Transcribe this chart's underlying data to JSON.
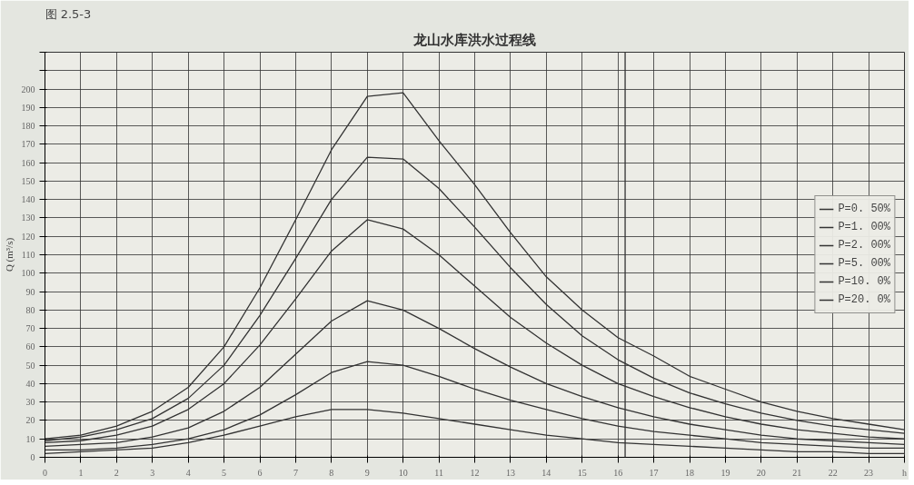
{
  "chart_data": {
    "type": "line",
    "title": "龙山水库洪水过程线",
    "annotations": [
      "图 2.5-3"
    ],
    "ylabel": "Q (m³/s)",
    "x": [
      0,
      1,
      2,
      3,
      4,
      5,
      6,
      7,
      8,
      9,
      10,
      11,
      12,
      13,
      14,
      15,
      16,
      17,
      18,
      19,
      20,
      21,
      22,
      23,
      24
    ],
    "series": [
      {
        "name": "P=0. 50%",
        "color": "#333333",
        "values": [
          10,
          12,
          17,
          25,
          38,
          60,
          92,
          129,
          167,
          196,
          198,
          172,
          148,
          122,
          98,
          80,
          65,
          55,
          44,
          37,
          30,
          25,
          21,
          18,
          15
        ]
      },
      {
        "name": "P=1. 00%",
        "color": "#333333",
        "values": [
          9,
          11,
          15,
          21,
          32,
          50,
          77,
          108,
          140,
          163,
          162,
          146,
          125,
          103,
          83,
          66,
          53,
          43,
          35,
          29,
          24,
          20,
          17,
          15,
          13
        ]
      },
      {
        "name": "P=2. 00%",
        "color": "#333333",
        "values": [
          8,
          9,
          12,
          17,
          26,
          40,
          61,
          86,
          112,
          129,
          124,
          110,
          93,
          76,
          62,
          50,
          40,
          33,
          27,
          22,
          18,
          15,
          13,
          11,
          10
        ]
      },
      {
        "name": "P=5. 00%",
        "color": "#333333",
        "values": [
          6,
          7,
          8,
          11,
          16,
          25,
          38,
          56,
          74,
          85,
          80,
          70,
          59,
          49,
          40,
          33,
          27,
          22,
          18,
          15,
          12,
          10,
          9,
          8,
          7
        ]
      },
      {
        "name": "P=10. 0%",
        "color": "#333333",
        "values": [
          4,
          4,
          5,
          7,
          10,
          15,
          23,
          34,
          46,
          52,
          50,
          44,
          37,
          31,
          26,
          21,
          17,
          14,
          12,
          10,
          8,
          7,
          6,
          5,
          5
        ]
      },
      {
        "name": "P=20. 0%",
        "color": "#333333",
        "values": [
          2,
          3,
          4,
          5,
          8,
          12,
          17,
          22,
          26,
          26,
          24,
          21,
          18,
          15,
          12,
          10,
          8,
          7,
          6,
          5,
          4,
          3,
          3,
          2,
          2
        ]
      }
    ],
    "xlim": [
      0,
      24
    ],
    "xticks": [
      0,
      1,
      2,
      3,
      4,
      5,
      6,
      7,
      8,
      9,
      10,
      11,
      12,
      13,
      14,
      15,
      16,
      17,
      18,
      19,
      20,
      21,
      22,
      23,
      {
        "value": 24,
        "label": "h"
      }
    ],
    "ylim": [
      0,
      220
    ],
    "yticks": [
      0,
      10,
      20,
      30,
      40,
      50,
      60,
      70,
      80,
      90,
      100,
      110,
      120,
      130,
      140,
      150,
      160,
      170,
      180,
      190,
      200,
      {
        "value": 210,
        "label": null
      },
      {
        "value": 220,
        "label": null
      }
    ],
    "ref_lines": [
      {
        "axis": "x",
        "value": 16.2,
        "label": null
      }
    ],
    "grid": true,
    "legend": "right",
    "marker": "none",
    "line_style": "solid"
  }
}
